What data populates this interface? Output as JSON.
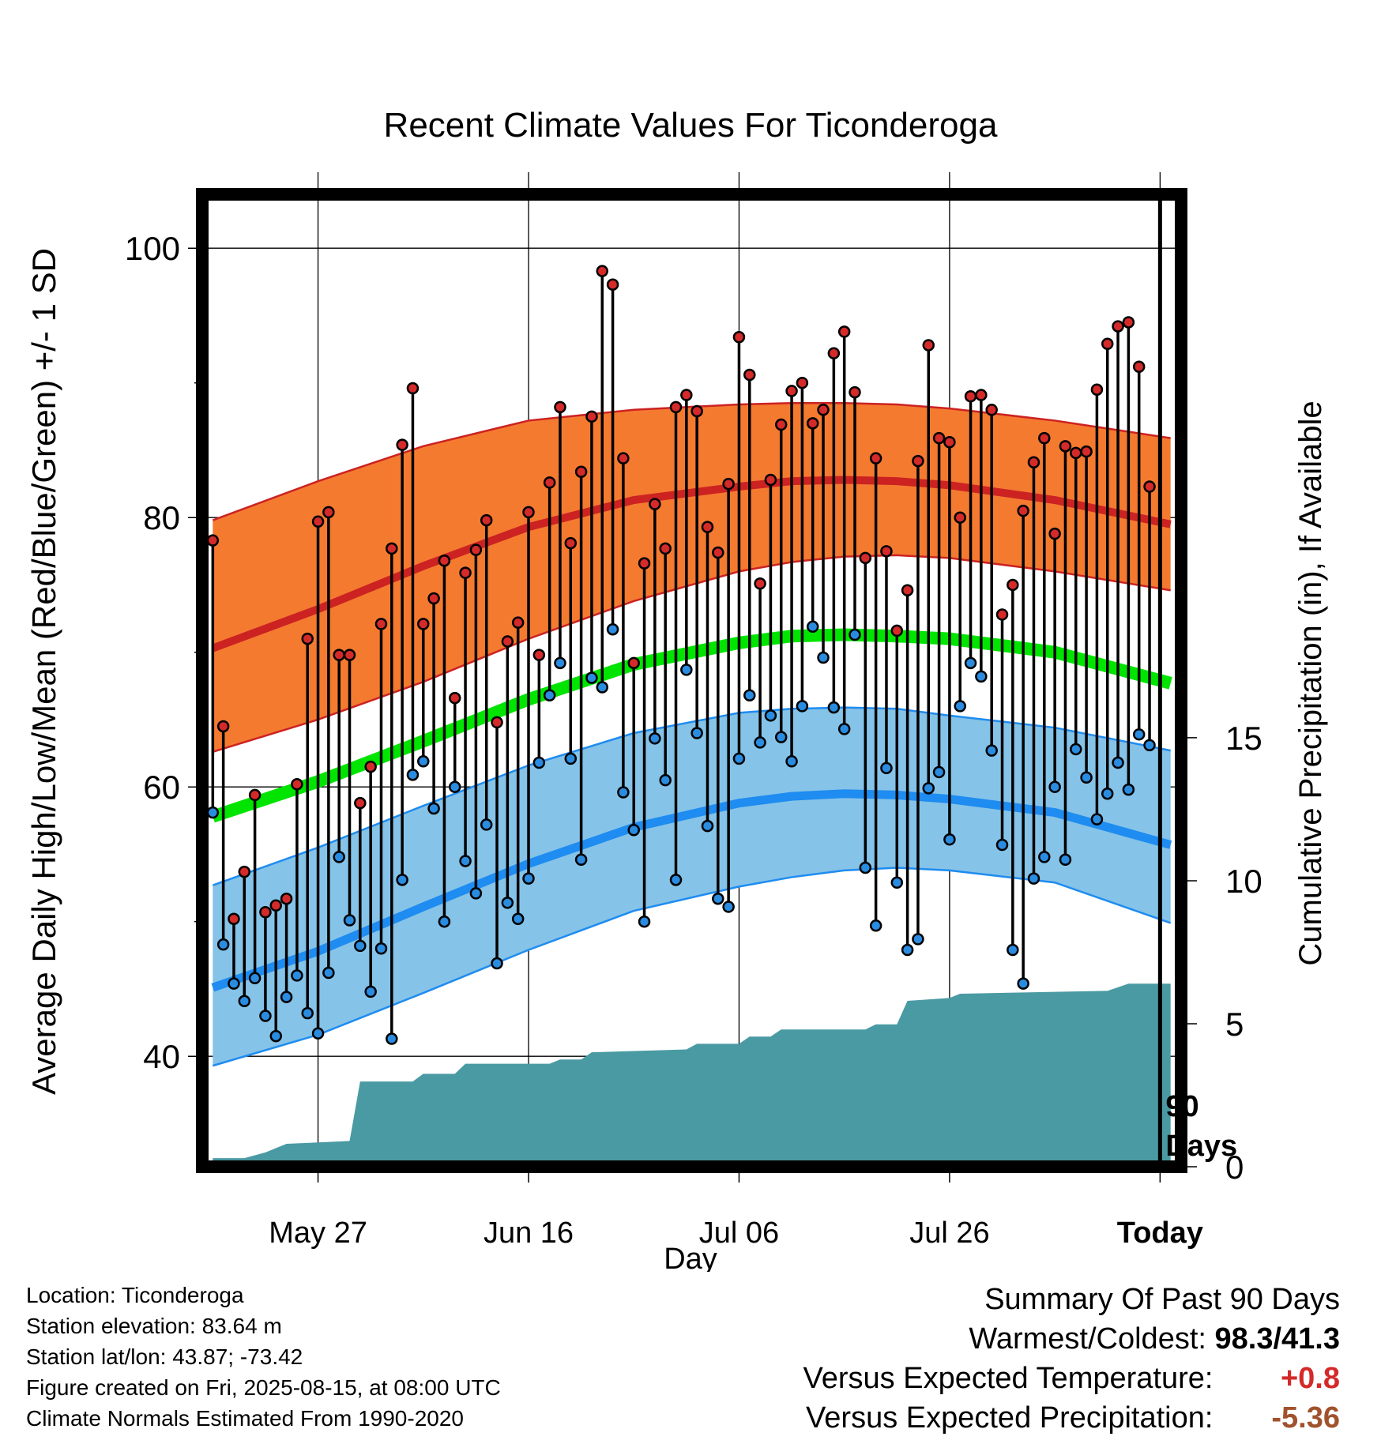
{
  "chart_data": {
    "type": "line",
    "title": "Recent Climate Values For Ticonderoga",
    "xlabel": "Day",
    "ylabel_left": "Average Daily High/Low/Mean (Red/Blue/Green) +/- 1 SD",
    "ylabel_right": "Cumulative Precipitation (in), If Available",
    "x_tick_labels": [
      "May 27",
      "Jun 16",
      "Jul 06",
      "Jul 26",
      "Today"
    ],
    "x_tick_days": [
      10,
      30,
      50,
      70,
      90
    ],
    "y_left_ticks": [
      40,
      60,
      80,
      100
    ],
    "y_left_range": [
      31.8,
      104
    ],
    "y_right_ticks": [
      0,
      5,
      10,
      15
    ],
    "y_right_range": [
      0,
      34
    ],
    "x_range": [
      -1,
      92
    ],
    "today_marker_label": "90\nDays",
    "series": [
      {
        "name": "High",
        "color": "#d42a2a",
        "values": [
          78.3,
          64.5,
          50.2,
          53.7,
          59.4,
          50.7,
          51.2,
          51.7,
          60.2,
          71.0,
          79.7,
          80.4,
          69.8,
          69.8,
          58.8,
          61.5,
          72.1,
          77.7,
          85.4,
          89.6,
          72.1,
          74.0,
          76.8,
          66.6,
          75.9,
          77.6,
          79.8,
          64.8,
          70.8,
          72.2,
          80.4,
          69.8,
          82.6,
          88.2,
          78.1,
          83.4,
          87.5,
          98.3,
          97.3,
          84.4,
          69.2,
          76.6,
          81.0,
          77.7,
          88.2,
          89.1,
          87.9,
          79.3,
          77.4,
          82.5,
          93.4,
          90.6,
          75.1,
          82.8,
          86.9,
          89.4,
          90.0,
          87.0,
          88.0,
          92.2,
          93.8,
          89.3,
          77.0,
          84.4,
          77.5,
          71.6,
          74.6,
          84.2,
          92.8,
          85.9,
          85.6,
          80.0,
          89.0,
          89.1,
          88.0,
          72.8,
          75.0,
          80.5,
          84.1,
          85.9,
          78.8,
          85.3,
          84.8,
          84.9,
          89.5,
          92.9,
          94.2,
          94.5,
          91.2,
          82.3
        ]
      },
      {
        "name": "Low",
        "color": "#2a8ce0",
        "values": [
          58.1,
          48.3,
          45.4,
          44.1,
          45.8,
          43.0,
          41.5,
          44.4,
          46.0,
          43.2,
          41.7,
          46.2,
          54.8,
          50.1,
          48.2,
          44.8,
          48.0,
          41.3,
          53.1,
          60.9,
          61.9,
          58.4,
          50.0,
          60.0,
          54.5,
          52.1,
          57.2,
          46.9,
          51.4,
          50.2,
          53.2,
          61.8,
          66.8,
          69.2,
          62.1,
          54.6,
          68.1,
          67.4,
          71.7,
          59.6,
          56.8,
          50.0,
          63.6,
          60.5,
          53.1,
          68.7,
          64.0,
          57.1,
          51.7,
          51.1,
          62.1,
          66.8,
          63.3,
          65.3,
          63.7,
          61.9,
          66.0,
          71.9,
          69.6,
          65.9,
          64.3,
          71.3,
          54.0,
          49.7,
          61.4,
          52.9,
          47.9,
          48.7,
          59.9,
          61.1,
          56.1,
          66.0,
          69.2,
          68.2,
          62.7,
          55.7,
          47.9,
          45.4,
          53.2,
          54.8,
          60.0,
          54.6,
          62.8,
          60.7,
          57.6,
          59.5,
          61.8,
          59.8,
          63.9,
          63.1
        ]
      },
      {
        "name": "Normal High",
        "color": "#cc2222",
        "x": [
          0,
          10,
          20,
          30,
          40,
          50,
          55,
          60,
          65,
          70,
          80,
          91
        ],
        "values": [
          70.3,
          73.2,
          76.4,
          79.3,
          81.3,
          82.3,
          82.7,
          82.8,
          82.7,
          82.4,
          81.3,
          79.5
        ]
      },
      {
        "name": "Normal High SD upper",
        "color": "#cc2222",
        "x": [
          0,
          10,
          20,
          30,
          40,
          50,
          55,
          60,
          65,
          70,
          80,
          91
        ],
        "values": [
          79.8,
          82.7,
          85.3,
          87.2,
          88.0,
          88.4,
          88.5,
          88.5,
          88.4,
          88.1,
          87.2,
          85.9
        ]
      },
      {
        "name": "Normal High SD lower",
        "color": "#cc2222",
        "x": [
          0,
          10,
          20,
          30,
          40,
          50,
          55,
          60,
          65,
          70,
          80,
          91
        ],
        "values": [
          62.6,
          65.0,
          67.8,
          71.0,
          73.8,
          76.0,
          76.7,
          77.1,
          77.2,
          77.0,
          76.0,
          74.6
        ]
      },
      {
        "name": "Normal Mean",
        "color": "#00e400",
        "x": [
          0,
          10,
          20,
          30,
          40,
          50,
          55,
          60,
          65,
          70,
          80,
          91
        ],
        "values": [
          57.8,
          60.4,
          63.4,
          66.5,
          69.1,
          70.7,
          71.2,
          71.3,
          71.2,
          71.0,
          70.0,
          67.7
        ]
      },
      {
        "name": "Normal Low",
        "color": "#1e8cf0",
        "x": [
          0,
          10,
          20,
          30,
          40,
          50,
          55,
          60,
          65,
          70,
          80,
          91
        ],
        "values": [
          45.1,
          47.8,
          51.1,
          54.3,
          57.0,
          58.8,
          59.3,
          59.5,
          59.4,
          59.1,
          58.1,
          55.7
        ]
      },
      {
        "name": "Normal Low SD upper",
        "color": "#1e8cf0",
        "x": [
          0,
          10,
          20,
          30,
          40,
          50,
          55,
          60,
          65,
          70,
          80,
          91
        ],
        "values": [
          52.7,
          55.5,
          58.6,
          61.6,
          64.0,
          65.5,
          65.8,
          65.9,
          65.8,
          65.3,
          64.4,
          62.7
        ]
      },
      {
        "name": "Normal Low SD lower",
        "color": "#1e8cf0",
        "x": [
          0,
          10,
          20,
          30,
          40,
          50,
          55,
          60,
          65,
          70,
          80,
          91
        ],
        "values": [
          39.3,
          41.6,
          44.7,
          47.9,
          50.8,
          52.6,
          53.3,
          53.8,
          54.0,
          53.8,
          52.9,
          49.9
        ]
      },
      {
        "name": "Cumulative Precipitation",
        "color": "#4a9aa3",
        "x": [
          0,
          3,
          5,
          7,
          13,
          14,
          19,
          20,
          23,
          24,
          32,
          33,
          35,
          36,
          45,
          46,
          50,
          51,
          53,
          54,
          62,
          63,
          65,
          66,
          70,
          71,
          85,
          87,
          91
        ],
        "values": [
          0.3,
          0.3,
          0.5,
          0.8,
          0.9,
          2.98,
          2.98,
          3.25,
          3.25,
          3.6,
          3.6,
          3.75,
          3.75,
          4.0,
          4.1,
          4.3,
          4.3,
          4.55,
          4.55,
          4.8,
          4.8,
          4.98,
          4.98,
          5.8,
          5.9,
          6.05,
          6.15,
          6.4,
          6.4
        ]
      }
    ]
  },
  "footer": {
    "location": "Location: Ticonderoga",
    "elevation": "Station elevation: 83.64 m",
    "latlon": "Station lat/lon: 43.87; -73.42",
    "created": "Figure created on Fri, 2025-08-15, at 08:00 UTC",
    "normals": "Climate Normals Estimated From 1990-2020"
  },
  "summary": {
    "heading": "Summary Of Past 90 Days",
    "warmest_label": "Warmest/Coldest:",
    "warmest_value": "98.3/41.3",
    "temp_label": "Versus Expected Temperature:",
    "temp_value": "+0.8",
    "temp_color": "#d42a2a",
    "precip_label": "Versus Expected Precipitation:",
    "precip_value": "-5.36",
    "precip_color": "#a0522d"
  }
}
